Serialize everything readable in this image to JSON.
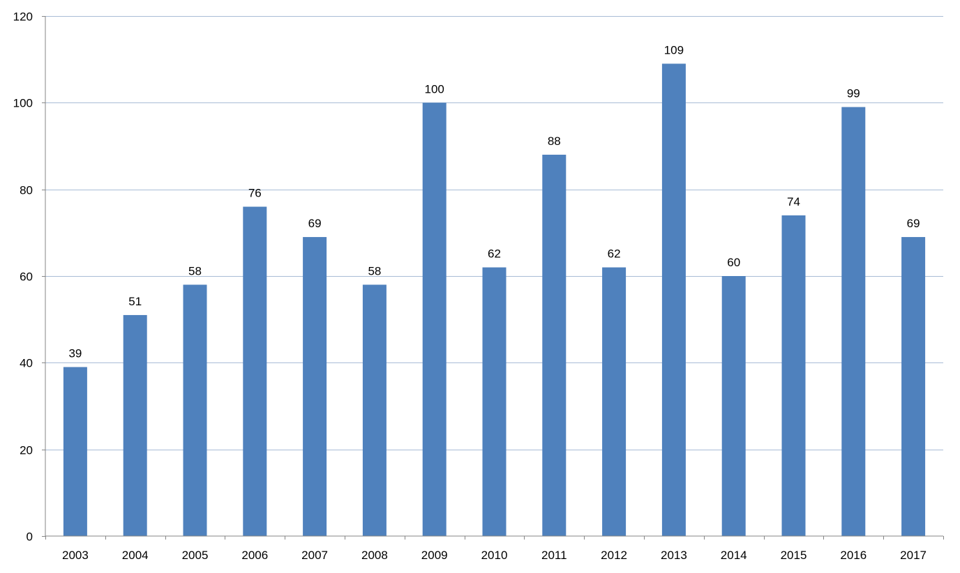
{
  "chart_data": {
    "type": "bar",
    "title": "",
    "xlabel": "",
    "ylabel": "",
    "categories": [
      "2003",
      "2004",
      "2005",
      "2006",
      "2007",
      "2008",
      "2009",
      "2010",
      "2011",
      "2012",
      "2013",
      "2014",
      "2015",
      "2016",
      "2017"
    ],
    "series": [
      {
        "values": [
          39,
          51,
          58,
          76,
          69,
          58,
          100,
          62,
          88,
          62,
          109,
          60,
          74,
          99,
          69
        ],
        "color": "#4f81bd"
      }
    ],
    "ylim": [
      0,
      120
    ],
    "yticks": [
      0,
      20,
      40,
      60,
      80,
      100,
      120
    ],
    "grid": true,
    "legend": "none",
    "data_labels": true
  }
}
